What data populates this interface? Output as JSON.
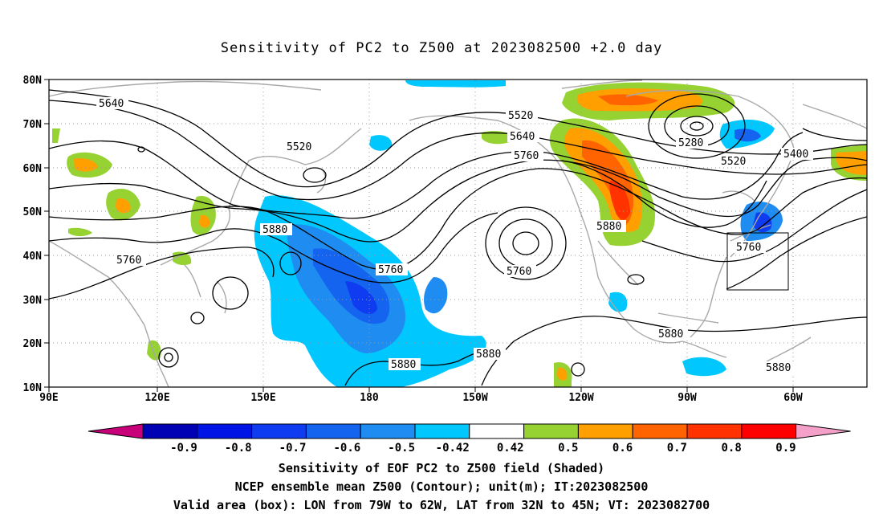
{
  "title": "Sensitivity of PC2 to Z500 at 2023082500 +2.0 day",
  "lat_ticks": [
    "80N",
    "70N",
    "60N",
    "50N",
    "40N",
    "30N",
    "20N",
    "10N"
  ],
  "lon_ticks": [
    "90E",
    "120E",
    "150E",
    "180",
    "150W",
    "120W",
    "90W",
    "60W"
  ],
  "contour_labels": [
    {
      "text": "5640"
    },
    {
      "text": "5520"
    },
    {
      "text": "5760"
    },
    {
      "text": "5880"
    },
    {
      "text": "5520"
    },
    {
      "text": "5640"
    },
    {
      "text": "5760"
    },
    {
      "text": "5760"
    },
    {
      "text": "5760"
    },
    {
      "text": "5880"
    },
    {
      "text": "5280"
    },
    {
      "text": "5400"
    },
    {
      "text": "5520"
    },
    {
      "text": "5760"
    },
    {
      "text": "5880"
    },
    {
      "text": "5880"
    },
    {
      "text": "5880"
    },
    {
      "text": "5880"
    }
  ],
  "colorbar": {
    "labels": [
      "-0.9",
      "-0.8",
      "-0.7",
      "-0.6",
      "-0.5",
      "-0.42",
      "0.42",
      "0.5",
      "0.6",
      "0.7",
      "0.8",
      "0.9"
    ],
    "colors": [
      "#c8007a",
      "#0000b4",
      "#0014e6",
      "#0f3cf0",
      "#1464f0",
      "#1e8cf0",
      "#00c8ff",
      "#ffffff",
      "#96d232",
      "#ffa000",
      "#ff6400",
      "#ff3200",
      "#ff0000",
      "#f5a0c8"
    ]
  },
  "caption": {
    "line1": "Sensitivity of EOF PC2 to Z500 field (Shaded)",
    "line2": "NCEP ensemble mean Z500 (Contour); unit(m); IT:2023082500",
    "line3": "Valid area (box): LON from 79W to 62W, LAT from 32N to 45N; VT: 2023082700"
  }
}
